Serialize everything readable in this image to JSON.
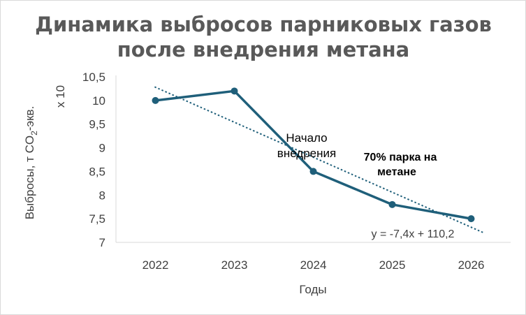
{
  "chart_data": {
    "type": "line",
    "title_line1": "Динамика выбросов парниковых газов",
    "title_line2": "после внедрения метана",
    "xlabel": "Годы",
    "ylabel_main": "Выбросы, т CO",
    "ylabel_sub": "2",
    "ylabel_tail": "-экв.",
    "y_multiplier": "х 10",
    "categories": [
      "2022",
      "2023",
      "2024",
      "2025",
      "2026"
    ],
    "y_tick_labels": [
      "7",
      "7,5",
      "8",
      "8,5",
      "9",
      "9,5",
      "10",
      "10,5"
    ],
    "ylim": [
      7,
      10.5
    ],
    "series": [
      {
        "values": [
          10.0,
          10.2,
          8.5,
          7.8,
          7.5
        ]
      }
    ],
    "trendline": {
      "label": "y = -7,4x + 110,2",
      "style": "dotted"
    },
    "annotations": {
      "start_line1": "Начало",
      "start_line2": "внедрения",
      "share_line1": "70% парка на",
      "share_line2": "метане"
    },
    "colors": {
      "series": "#1f5f7a",
      "trend": "#1f5f7a",
      "grid": "#d9d9d9",
      "title": "#595959"
    },
    "grid": false
  }
}
